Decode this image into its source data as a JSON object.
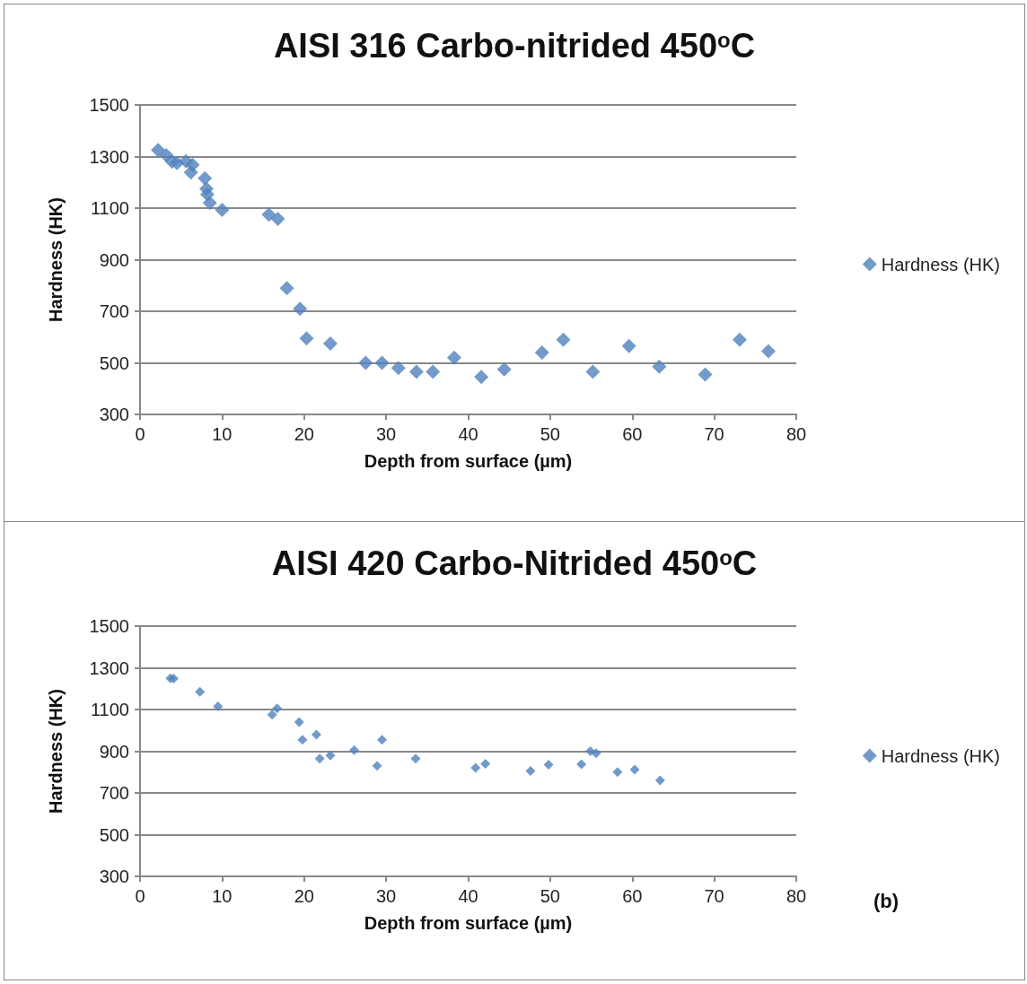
{
  "chart_data": [
    {
      "type": "scatter",
      "title": "AISI 316 Carbo-nitrided 450$^{o}$C",
      "xlabel": "Depth from surface (µm)",
      "ylabel": "Hardness (HK)",
      "xlim": [
        0,
        80
      ],
      "xticks": [
        0,
        10,
        20,
        30,
        40,
        50,
        60,
        70,
        80
      ],
      "ylim": [
        300,
        1500
      ],
      "yticks": [
        300,
        500,
        700,
        900,
        1100,
        1300,
        1500
      ],
      "grid": "y",
      "legend": "right",
      "marker": "diamond",
      "series": [
        {
          "name": "Hardness (HK)",
          "color": "#4f81bd",
          "x": [
            2.2,
            3.2,
            3.9,
            4.5,
            5.6,
            6.4,
            6.2,
            7.9,
            8.1,
            8.2,
            8.5,
            10,
            15.7,
            16.8,
            17.9,
            19.5,
            20.3,
            23.2,
            27.5,
            29.5,
            31.5,
            33.7,
            35.7,
            38.3,
            41.6,
            44.4,
            49,
            51.6,
            55.2,
            59.6,
            63.3,
            68.9,
            73.1,
            76.6
          ],
          "values": [
            1325,
            1305,
            1280,
            1275,
            1282,
            1268,
            1238,
            1216,
            1175,
            1153,
            1120,
            1093,
            1075,
            1058,
            790,
            710,
            595,
            575,
            500,
            500,
            480,
            465,
            465,
            520,
            445,
            475,
            540,
            590,
            465,
            565,
            485,
            455,
            590,
            545
          ]
        }
      ]
    },
    {
      "type": "scatter",
      "title": "AISI 420 Carbo-Nitrided 450$^{o}$C",
      "xlabel": "Depth from surface (µm)",
      "ylabel": "Hardness (HK)",
      "annotations": [
        "(b)"
      ],
      "xlim": [
        0,
        80
      ],
      "xticks": [
        0,
        10,
        20,
        30,
        40,
        50,
        60,
        70,
        80
      ],
      "ylim": [
        300,
        1500
      ],
      "yticks": [
        300,
        500,
        700,
        900,
        1100,
        1300,
        1500
      ],
      "grid": "y",
      "legend": "right",
      "marker": "diamond",
      "series": [
        {
          "name": "Hardness (HK)",
          "color": "#4f81bd",
          "x": [
            3.7,
            4.1,
            7.3,
            9.5,
            16.1,
            16.7,
            19.4,
            19.8,
            21.5,
            21.9,
            23.2,
            26.1,
            28.9,
            29.5,
            33.6,
            40.9,
            42.1,
            47.6,
            49.8,
            53.8,
            54.9,
            55.6,
            58.2,
            60.3,
            63.4
          ],
          "values": [
            1250,
            1248,
            1185,
            1115,
            1075,
            1105,
            1040,
            955,
            980,
            865,
            880,
            905,
            830,
            955,
            865,
            820,
            840,
            805,
            835,
            838,
            900,
            890,
            800,
            812,
            760
          ]
        }
      ]
    }
  ]
}
